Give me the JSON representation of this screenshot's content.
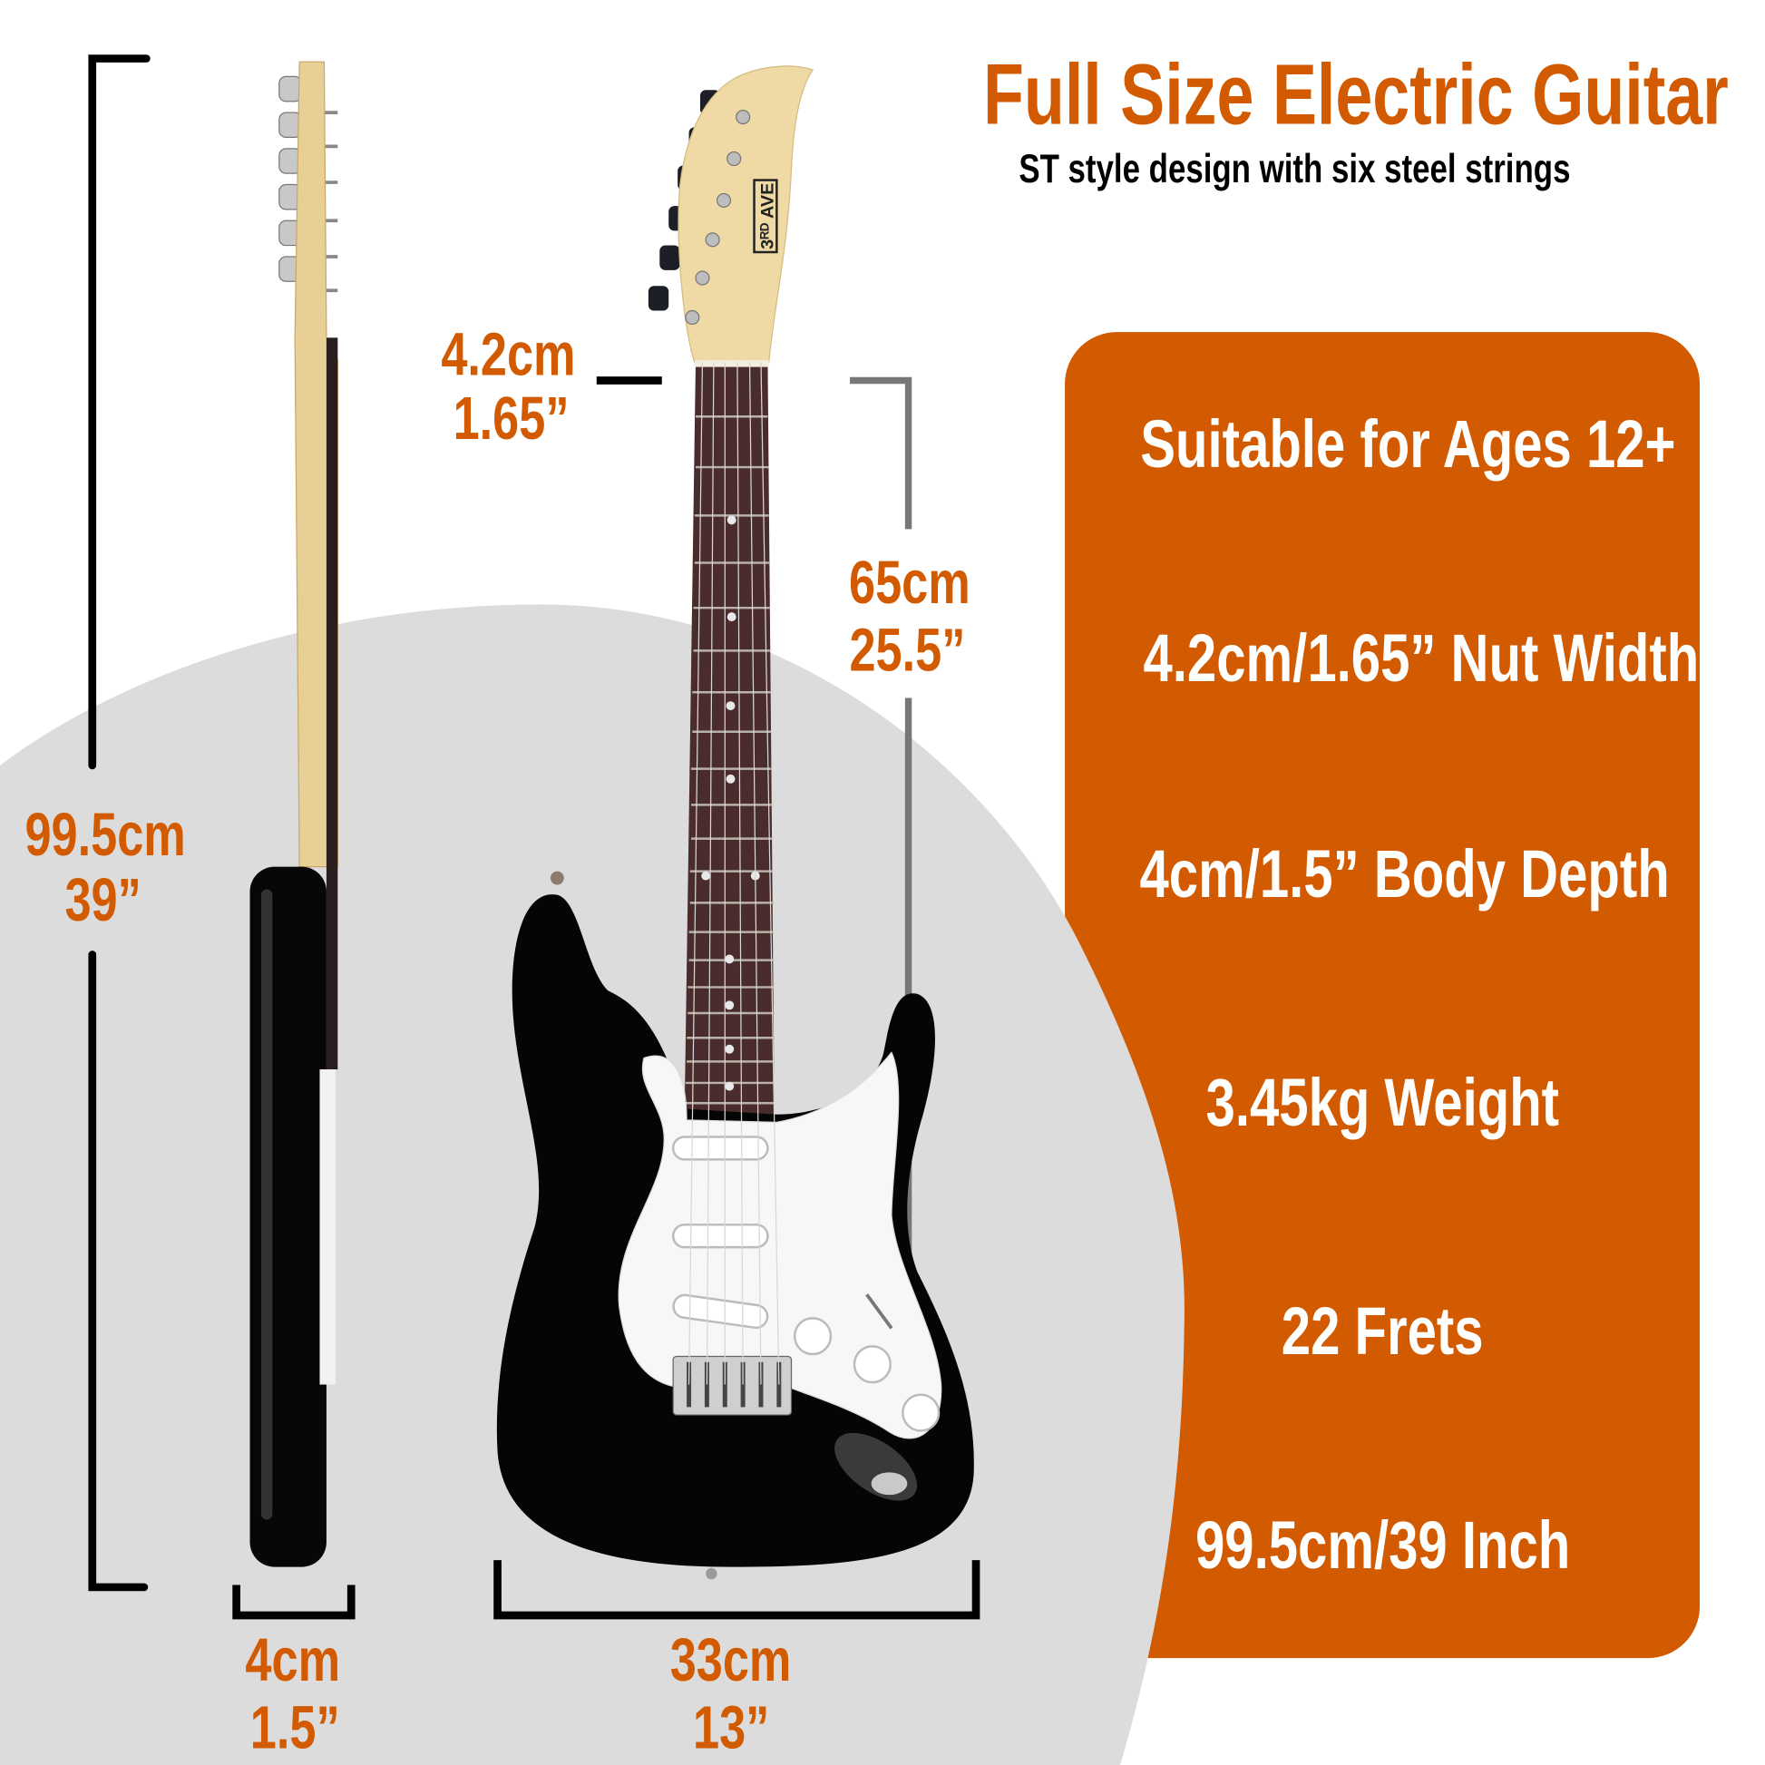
{
  "header": {
    "title": "Full Size Electric Guitar",
    "subtitle": "ST style design with six steel strings"
  },
  "features": [
    "Suitable for Ages 12+",
    "4.2cm/1.65” Nut Width",
    "4cm/1.5” Body Depth",
    "3.45kg Weight",
    "22 Frets",
    "99.5cm/39 Inch"
  ],
  "dimensions": {
    "nut_width": {
      "metric": "4.2cm",
      "imperial": "1.65”"
    },
    "scale_length": {
      "metric": "65cm",
      "imperial": "25.5”"
    },
    "total_length": {
      "metric": "99.5cm",
      "imperial": "39”"
    },
    "body_depth": {
      "metric": "4cm",
      "imperial": "1.5”"
    },
    "body_width": {
      "metric": "33cm",
      "imperial": "13”"
    }
  },
  "logo": "3RD AVE",
  "colors": {
    "accent": "#d25a00",
    "background_circle": "#dcdcdc",
    "guitar_body": "#000000",
    "pickguard": "#ffffff"
  }
}
